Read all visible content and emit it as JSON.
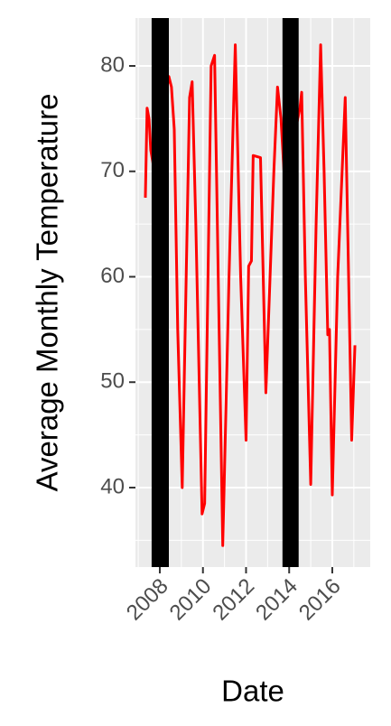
{
  "chart_data": {
    "type": "line",
    "x_label": "Date",
    "y_label": "Average Monthly Temperature",
    "x": [
      2007.33,
      2007.41,
      2007.5,
      2007.58,
      2007.75,
      2008.0,
      2008.42,
      2008.54,
      2008.67,
      2008.83,
      2009.04,
      2009.38,
      2009.5,
      2009.67,
      2009.96,
      2010.08,
      2010.38,
      2010.54,
      2010.71,
      2010.92,
      2011.21,
      2011.5,
      2011.75,
      2012.0,
      2012.12,
      2012.25,
      2012.33,
      2012.67,
      2012.92,
      2013.29,
      2013.46,
      2013.62,
      2013.9,
      2014.1,
      2014.5,
      2014.58,
      2014.75,
      2015.0,
      2015.25,
      2015.46,
      2015.62,
      2015.79,
      2015.87,
      2016.0,
      2016.25,
      2016.6,
      2016.9,
      2017.05
    ],
    "series": [
      {
        "color": "#ff0000",
        "values": [
          67.5,
          76,
          75,
          72,
          70,
          74,
          79,
          78,
          74,
          55,
          40,
          77,
          78.5,
          65,
          37.5,
          38.5,
          80,
          81,
          60,
          34.5,
          60,
          82,
          60,
          44.5,
          61,
          61.5,
          71.5,
          71.3,
          49,
          70,
          78,
          75,
          65,
          72,
          76,
          77.5,
          60,
          40.3,
          65,
          82,
          70,
          54.5,
          55,
          39.3,
          60,
          77,
          44.5,
          53.5
        ]
      }
    ],
    "bands": [
      {
        "xmin": 2007.62,
        "xmax": 2008.42
      },
      {
        "xmin": 2013.69,
        "xmax": 2014.44
      }
    ],
    "band_color": "#000000",
    "xlim": [
      2006.87,
      2017.76
    ],
    "xticks": [
      2008,
      2010,
      2012,
      2014,
      2016
    ],
    "xminor": [
      2007,
      2009,
      2011,
      2013,
      2015,
      2017
    ],
    "ylim": [
      32.46,
      84.54
    ],
    "yticks": [
      40,
      50,
      60,
      70,
      80
    ],
    "yminor": [
      35,
      45,
      55,
      65,
      75
    ],
    "grid": true
  }
}
